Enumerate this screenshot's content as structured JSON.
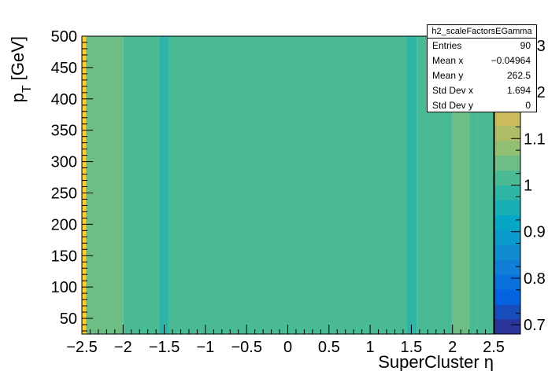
{
  "chart_data": {
    "type": "heatmap",
    "xlabel": "SuperCluster η",
    "ylabel": "p_T [GeV]",
    "xlim": [
      -2.5,
      2.5
    ],
    "ylim": [
      25,
      500
    ],
    "x_ticks": [
      -2.5,
      -2,
      -1.5,
      -1,
      -0.5,
      0,
      0.5,
      1,
      1.5,
      2,
      2.5
    ],
    "x_tick_labels": [
      "−2.5",
      "−2",
      "−1.5",
      "−1",
      "−0.5",
      "0",
      "0.5",
      "1",
      "1.5",
      "2",
      "2.5"
    ],
    "y_ticks": [
      50,
      100,
      150,
      200,
      250,
      300,
      350,
      400,
      450,
      500
    ],
    "y_tick_labels": [
      "50",
      "100",
      "150",
      "200",
      "250",
      "300",
      "350",
      "400",
      "450",
      "500"
    ],
    "z_range": [
      0.68,
      1.32
    ],
    "colorbar_ticks": [
      0.7,
      0.8,
      0.9,
      1,
      1.1,
      1.2,
      1.3
    ],
    "colorbar_tick_labels": [
      "0.7",
      "0.8",
      "0.9",
      "1",
      "1.1",
      "1.2",
      "1.3"
    ],
    "x_bin_edges": [
      -2.5,
      -2.45,
      -2.0,
      -1.566,
      -1.444,
      1.444,
      1.566,
      2.0,
      2.2,
      2.3,
      2.5
    ],
    "y_bin_edges": [
      25,
      500
    ],
    "cell_values": [
      1.25,
      1.06,
      1.01,
      0.97,
      1.01,
      0.97,
      1.01,
      1.04,
      1.01,
      1.01
    ],
    "stats_box": {
      "title": "h2_scaleFactorsEGamma",
      "rows": [
        {
          "label": "Entries",
          "value": "90"
        },
        {
          "label": "Mean x",
          "value": "−0.04964"
        },
        {
          "label": "Mean y",
          "value": "262.5"
        },
        {
          "label": "Std Dev x",
          "value": "1.694"
        },
        {
          "label": "Std Dev y",
          "value": "0"
        }
      ]
    },
    "grid": false,
    "palette": [
      "#352a87",
      "#0363e1",
      "#1485d4",
      "#06a7c6",
      "#38b99e",
      "#92bf73",
      "#d9ba56",
      "#fcce2e",
      "#f9fb0e"
    ]
  }
}
